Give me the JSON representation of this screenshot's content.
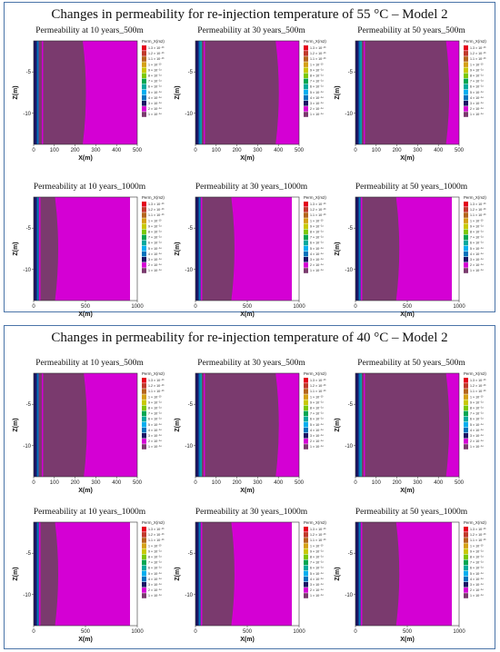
{
  "figure": {
    "sections": [
      {
        "title": "Changes in permeability for re-injection temperature of 55 °C – Model 2",
        "panels": [
          {
            "title": "Permeability  at 10 years_500m",
            "depth": "500m",
            "xticks": [
              "0",
              "100",
              "200",
              "300",
              "400",
              "500"
            ],
            "xmax": 500,
            "front": 0.5
          },
          {
            "title": "Permeability  at 30 years_500m",
            "depth": "500m",
            "xticks": [
              "0",
              "100",
              "200",
              "300",
              "400",
              "500"
            ],
            "xmax": 500,
            "front": 0.8
          },
          {
            "title": "Permeability  at 50 years_500m",
            "depth": "500m",
            "xticks": [
              "0",
              "100",
              "200",
              "300",
              "400",
              "500"
            ],
            "xmax": 500,
            "front": 0.9
          },
          {
            "title": "Permeability  at 10 years_1000m",
            "depth": "1000m",
            "xticks": [
              "0",
              "500",
              "1000"
            ],
            "xmax": 1000,
            "front": 0.25
          },
          {
            "title": "Permeability  at 30 years_1000m",
            "depth": "1000m",
            "xticks": [
              "0",
              "500",
              "1000"
            ],
            "xmax": 1000,
            "front": 0.4
          },
          {
            "title": "Permeability  at 50 years_1000m",
            "depth": "1000m",
            "xticks": [
              "0",
              "500",
              "1000"
            ],
            "xmax": 1000,
            "front": 0.45
          }
        ]
      },
      {
        "title": "Changes in permeability for re-injection temperature of 40 °C – Model 2",
        "panels": [
          {
            "title": "Permeability  at 10 years_500m",
            "depth": "500m",
            "xticks": [
              "0",
              "100",
              "200",
              "300",
              "400",
              "500"
            ],
            "xmax": 500,
            "front": 0.51
          },
          {
            "title": "Permeability  at 30 years_500m",
            "depth": "500m",
            "xticks": [
              "0",
              "100",
              "200",
              "300",
              "400",
              "500"
            ],
            "xmax": 500,
            "front": 0.8
          },
          {
            "title": "Permeability  at 50 years_500m",
            "depth": "500m",
            "xticks": [
              "0",
              "100",
              "200",
              "300",
              "400",
              "500"
            ],
            "xmax": 500,
            "front": 0.9
          },
          {
            "title": "Permeability  at 10 years_1000m",
            "depth": "1000m",
            "xticks": [
              "0",
              "500",
              "1000"
            ],
            "xmax": 1000,
            "front": 0.25
          },
          {
            "title": "Permeability  at 30 years_1000m",
            "depth": "1000m",
            "xticks": [
              "0",
              "500",
              "1000"
            ],
            "xmax": 1000,
            "front": 0.4
          },
          {
            "title": "Permeability  at 50 years_1000m",
            "depth": "1000m",
            "xticks": [
              "0",
              "500",
              "1000"
            ],
            "xmax": 1000,
            "front": 0.45
          }
        ]
      }
    ],
    "axis": {
      "xlabel": "X(m)",
      "ylabel": "Z(m)",
      "yticks": [
        "-5",
        "-10"
      ]
    },
    "legend": {
      "title": "Perm_X(m2)",
      "entries": [
        {
          "label": "1.3 × 10⁻¹³",
          "color": "#e3001b"
        },
        {
          "label": "1.2 × 10⁻¹³",
          "color": "#c0392b"
        },
        {
          "label": "1.1 × 10⁻¹³",
          "color": "#b5651d"
        },
        {
          "label": "1 × 10⁻¹³",
          "color": "#d4a017"
        },
        {
          "label": "9 × 10⁻¹⁴",
          "color": "#c8c800"
        },
        {
          "label": "8 × 10⁻¹⁴",
          "color": "#7cc800"
        },
        {
          "label": "7 × 10⁻¹⁴",
          "color": "#00a651"
        },
        {
          "label": "6 × 10⁻¹⁴",
          "color": "#00a99d"
        },
        {
          "label": "5 × 10⁻¹⁴",
          "color": "#00aeef"
        },
        {
          "label": "4 × 10⁻¹⁴",
          "color": "#0072bc"
        },
        {
          "label": "3 × 10⁻¹⁴",
          "color": "#1b1464"
        },
        {
          "label": "2 × 10⁻¹⁴",
          "color": "#d400d4"
        },
        {
          "label": "1 × 10⁻¹⁴",
          "color": "#7a3a6e"
        }
      ]
    },
    "colors": {
      "low_perm_zone": "#7a3a6e",
      "high_perm_zone": "#d400d4",
      "well_strip_1": "#1b1464",
      "well_strip_2": "#0072bc",
      "well_strip_3": "#00a99d",
      "frame": "#4a74a8"
    }
  }
}
